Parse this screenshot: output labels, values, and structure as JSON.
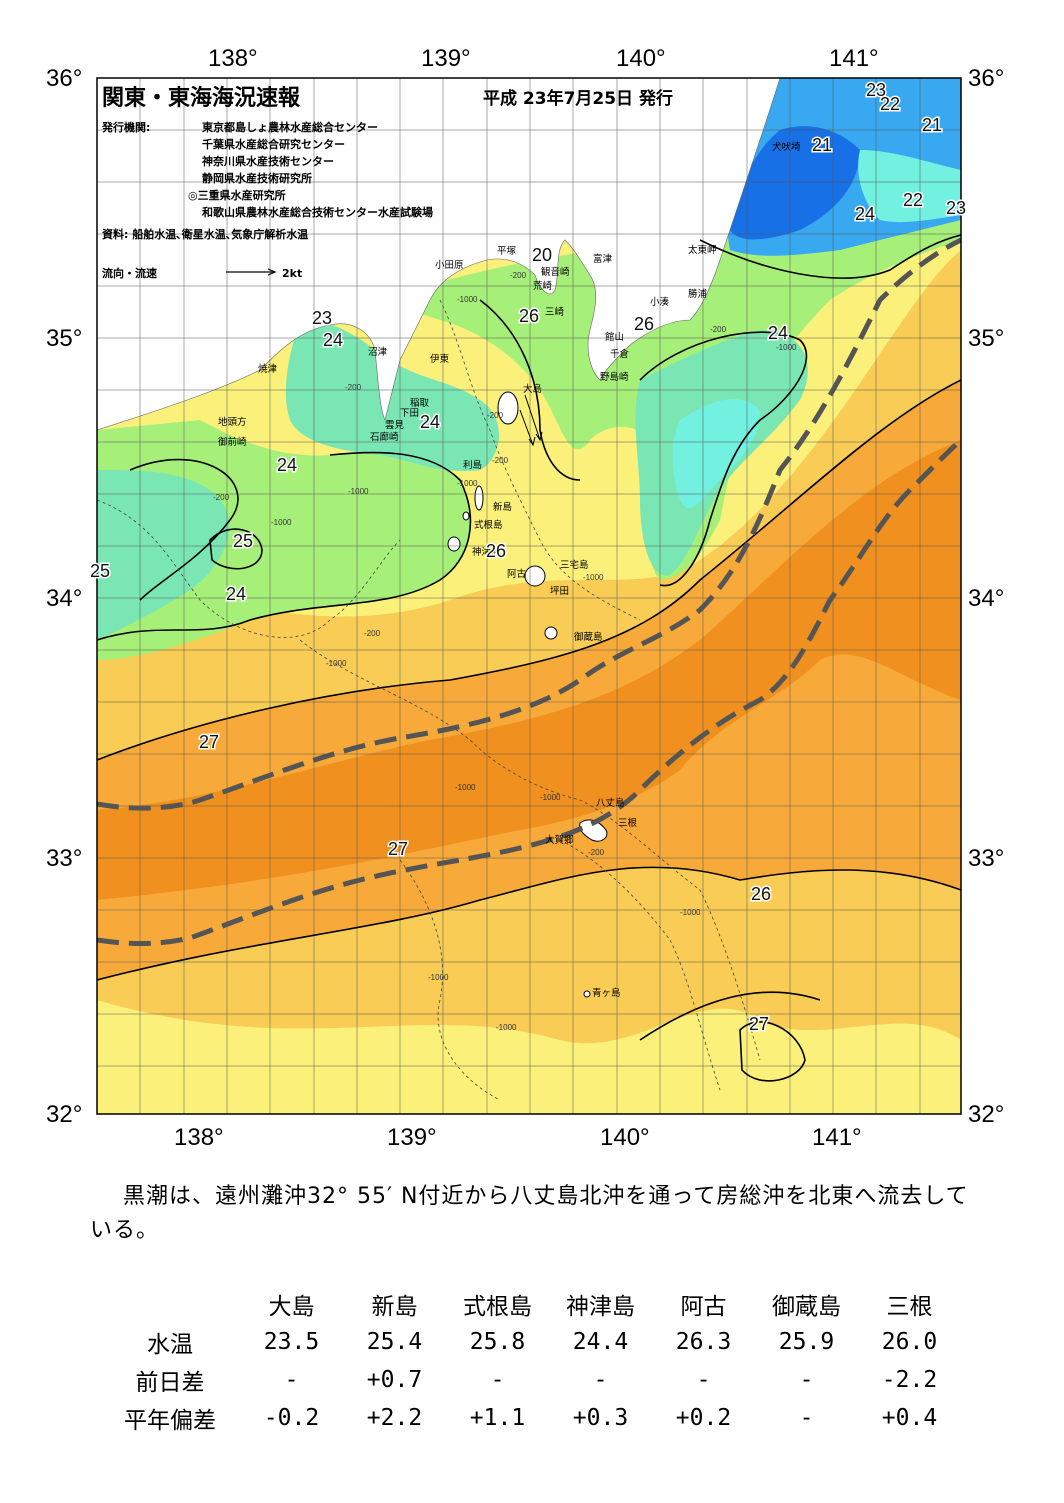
{
  "map": {
    "title": "関東・東海海況速報",
    "issue_date": "平成 23年7月25日 発行",
    "publisher_label": "発行機関:",
    "publishers": [
      "東京都島しょ農林水産総合センター",
      "千葉県水産総合研究センター",
      "神奈川県水産技術センター",
      "静岡県水産技術研究所",
      "◎三重県水産研究所",
      "和歌山県農林水産総合技術センター水産試験場"
    ],
    "source": "資料: 船舶水温､衛星水温､気象庁解析水温",
    "legend_label": "流向・流速",
    "legend_speed": "2kt",
    "lon_labels": [
      "138°",
      "139°",
      "140°",
      "141°"
    ],
    "lat_labels": [
      "36°",
      "35°",
      "34°",
      "33°",
      "32°"
    ],
    "place_names": {
      "inubozaki": "犬吠埼",
      "taitomisaki": "太東岬",
      "katsuura": "勝浦",
      "kominato": "小湊",
      "tomitsu": "富津",
      "hiratsuka": "平塚",
      "odawara": "小田原",
      "kannonzaki": "観音崎",
      "arasaki": "荒崎",
      "misaki": "三崎",
      "tateyama": "館山",
      "chikura": "千倉",
      "nojimazaki": "野島崎",
      "numazu": "沼津",
      "ito": "伊東",
      "yaizu": "焼津",
      "inatori": "稲取",
      "shimoda": "下田",
      "kumomi": "雲見",
      "irozaki": "石廊崎",
      "jitogata": "地頭方",
      "omaezaki": "御前崎",
      "oshima": "大島",
      "toshima": "利島",
      "niijima": "新島",
      "shikinejima": "式根島",
      "kozushima": "神津島",
      "miyakejima": "三宅島",
      "ako": "阿古",
      "tsubota": "坪田",
      "mikurajima": "御蔵島",
      "hachijojima": "八丈島",
      "mine": "三根",
      "ogoshi": "大賀郷",
      "aogashima": "青ヶ島"
    },
    "isotherms": [
      "20",
      "21",
      "21",
      "22",
      "22",
      "23",
      "23",
      "23",
      "24",
      "24",
      "24",
      "24",
      "24",
      "24",
      "25",
      "25",
      "26",
      "26",
      "26",
      "26",
      "27",
      "27",
      "27"
    ],
    "depth_contours": [
      "-200",
      "-1000"
    ],
    "colors": {
      "t27plus": "#f0901e",
      "t27": "#f7a93a",
      "t26": "#f8cc55",
      "t25": "#fbf07a",
      "t24": "#a6f07a",
      "t23": "#7ae6b4",
      "t22": "#72f0e0",
      "t21": "#38a8f0",
      "t20": "#1870e6",
      "kuroshio_axis": "#555555"
    }
  },
  "summary": "黒潮は、遠州灘沖32° 55′ N付近から八丈島北沖を通って房総沖を北東へ流去している。",
  "table": {
    "columns": [
      "大島",
      "新島",
      "式根島",
      "神津島",
      "阿古",
      "御蔵島",
      "三根"
    ],
    "rows": [
      {
        "label": "水温",
        "values": [
          "23.5",
          "25.4",
          "25.8",
          "24.4",
          "26.3",
          "25.9",
          "26.0"
        ]
      },
      {
        "label": "前日差",
        "values": [
          "-",
          "+0.7",
          "-",
          "-",
          "-",
          "-",
          "-2.2"
        ]
      },
      {
        "label": "平年偏差",
        "values": [
          "-0.2",
          "+2.2",
          "+1.1",
          "+0.3",
          "+0.2",
          "-",
          "+0.4"
        ]
      }
    ]
  }
}
